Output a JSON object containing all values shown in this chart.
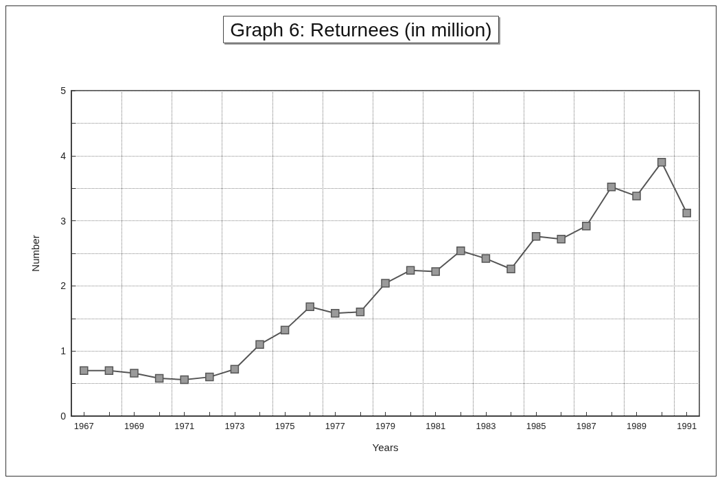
{
  "chart_data": {
    "type": "line",
    "title": "Graph 6: Returnees (in million)",
    "xlabel": "Years",
    "ylabel": "Number",
    "categories": [
      "1967",
      null,
      "1969",
      null,
      "1971",
      null,
      "1973",
      null,
      "1975",
      null,
      "1977",
      null,
      "1979",
      null,
      "1981",
      null,
      "1983",
      null,
      "1985",
      null,
      "1987",
      null,
      "1989",
      null,
      "1991"
    ],
    "series": [
      {
        "color": "#555555",
        "values": [
          0.7,
          0.7,
          0.66,
          0.58,
          0.56,
          0.6,
          0.72,
          1.1,
          1.32,
          1.68,
          1.58,
          1.6,
          2.04,
          2.24,
          2.22,
          2.54,
          2.42,
          2.26,
          2.76,
          2.72,
          2.92,
          3.52,
          3.38,
          3.9,
          3.12
        ]
      }
    ],
    "ylim": [
      0,
      5
    ],
    "yticks": [
      0,
      {
        "value": 0.5,
        "label": null
      },
      1,
      {
        "value": 1.5,
        "label": null
      },
      2,
      {
        "value": 2.5,
        "label": null
      },
      3,
      {
        "value": 3.5,
        "label": null
      },
      4,
      {
        "value": 4.5,
        "label": null
      },
      5
    ],
    "grid": true,
    "marker": "square",
    "line_style": "solid"
  }
}
